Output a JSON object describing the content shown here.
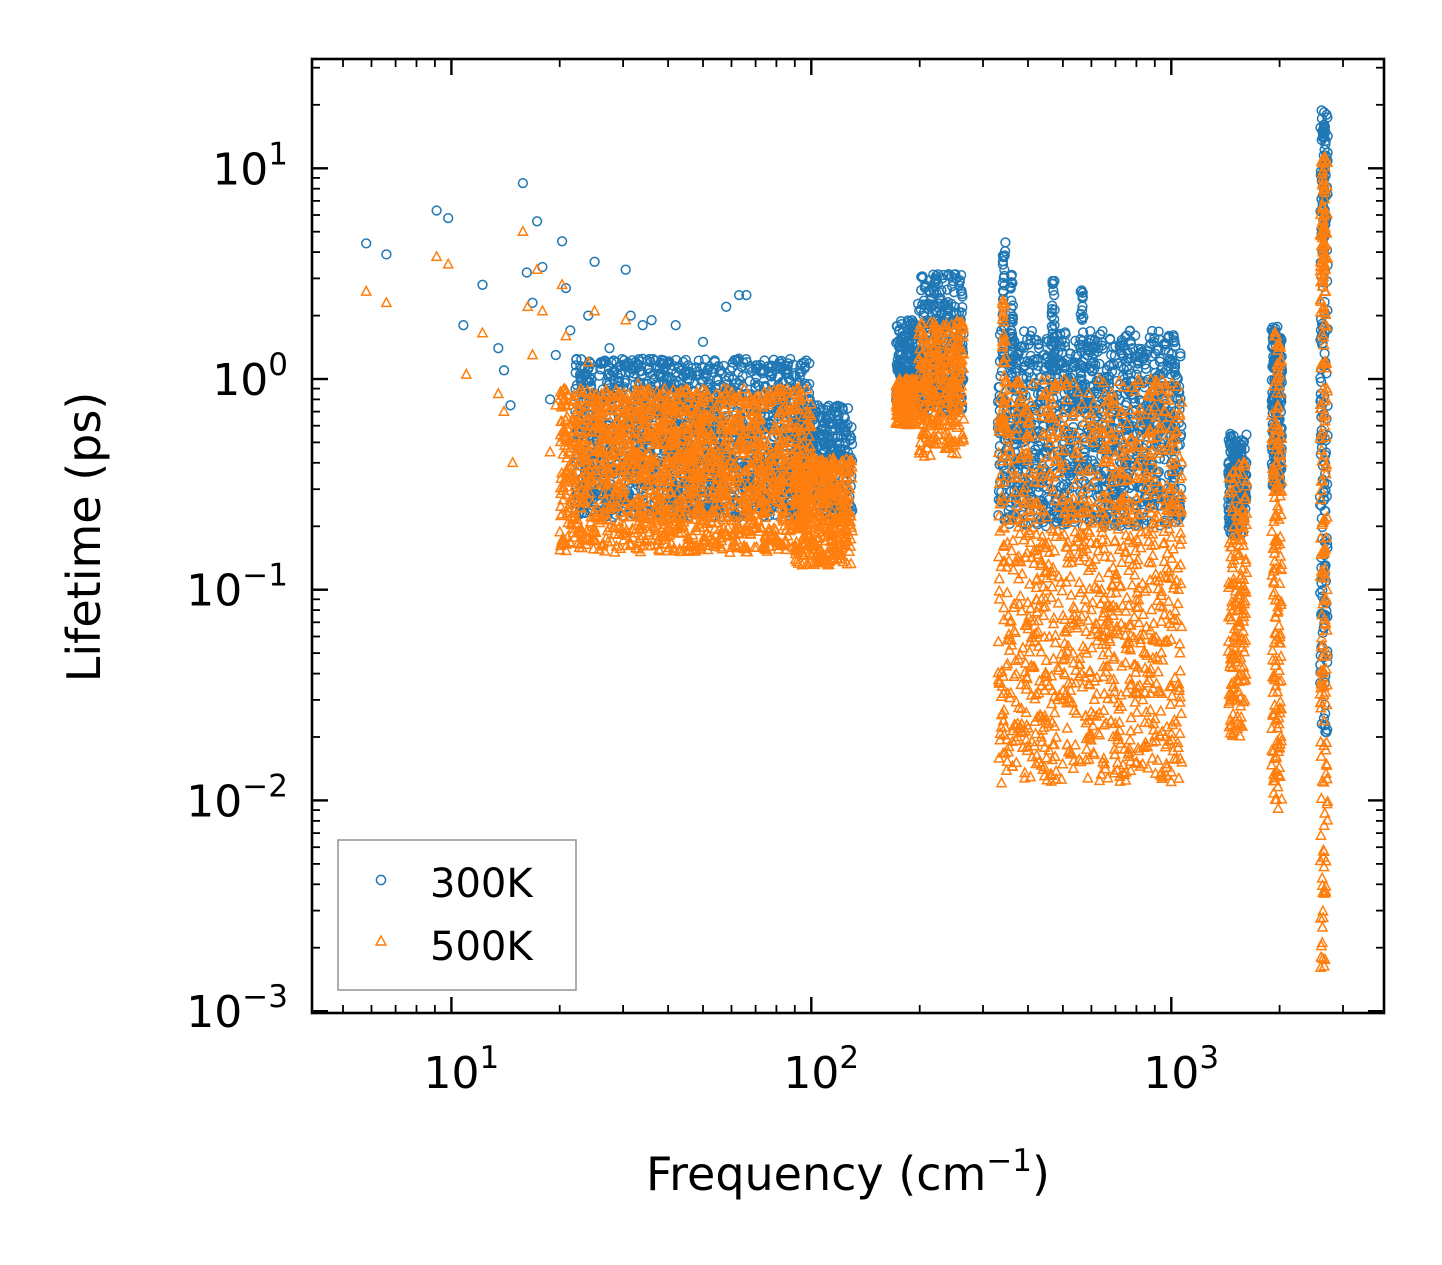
{
  "chart_data": {
    "type": "scatter",
    "title": "",
    "xlabel": "Frequency (cm",
    "xlabel_sup": "−1",
    "xlabel_end": ")",
    "ylabel": "Lifetime (ps)",
    "xscale": "log",
    "yscale": "log",
    "xlim": [
      4.1,
      3900
    ],
    "ylim": [
      0.00098,
      33
    ],
    "x_ticks": [
      {
        "value": 10,
        "base": "10",
        "exp": "1"
      },
      {
        "value": 100,
        "base": "10",
        "exp": "2"
      },
      {
        "value": 1000,
        "base": "10",
        "exp": "3"
      }
    ],
    "y_ticks": [
      {
        "value": 10,
        "base": "10",
        "exp": "1"
      },
      {
        "value": 1,
        "base": "10",
        "exp": "0"
      },
      {
        "value": 0.1,
        "base": "10",
        "exp": "−1"
      },
      {
        "value": 0.01,
        "base": "10",
        "exp": "−2"
      },
      {
        "value": 0.001,
        "base": "10",
        "exp": "−3"
      }
    ],
    "legend_position": "bottom-left",
    "series": [
      {
        "name": "300K",
        "marker": "circle",
        "color": "#1f77b4",
        "isolated_points": [
          [
            5.8,
            4.4
          ],
          [
            6.6,
            3.9
          ],
          [
            9.1,
            6.3
          ],
          [
            9.8,
            5.8
          ],
          [
            10.8,
            1.8
          ],
          [
            12.2,
            2.8
          ],
          [
            13.5,
            1.4
          ],
          [
            14.0,
            1.1
          ],
          [
            14.6,
            0.75
          ],
          [
            15.8,
            8.5
          ],
          [
            16.2,
            3.2
          ],
          [
            16.8,
            2.3
          ],
          [
            17.3,
            5.6
          ],
          [
            17.9,
            3.4
          ],
          [
            18.8,
            0.8
          ],
          [
            19.5,
            1.3
          ],
          [
            20.3,
            4.5
          ],
          [
            20.8,
            2.7
          ],
          [
            21.4,
            1.7
          ],
          [
            22.5,
            0.6
          ],
          [
            24.0,
            2.0
          ],
          [
            25.0,
            3.6
          ],
          [
            26.0,
            1.2
          ],
          [
            27.5,
            1.4
          ],
          [
            29.0,
            0.9
          ],
          [
            30.5,
            3.3
          ],
          [
            31.5,
            2.0
          ],
          [
            34.0,
            1.8
          ],
          [
            36.0,
            1.9
          ],
          [
            42.0,
            1.8
          ],
          [
            50.0,
            1.5
          ],
          [
            58.0,
            2.2
          ],
          [
            63.0,
            2.5
          ],
          [
            66.0,
            2.5
          ]
        ],
        "clusters": [
          {
            "x_range": [
              22,
              100
            ],
            "y_range": [
              0.22,
              1.25
            ]
          },
          {
            "x_range": [
              90,
              130
            ],
            "y_range": [
              0.22,
              0.75
            ]
          },
          {
            "x_range": [
              172,
              195
            ],
            "y_range": [
              0.75,
              1.9
            ]
          },
          {
            "x_range": [
              198,
              265
            ],
            "y_range": [
              0.7,
              3.2
            ]
          },
          {
            "x_range": [
              330,
              1070
            ],
            "y_range": [
              0.2,
              1.7
            ]
          },
          {
            "x_range": [
              1440,
              1620
            ],
            "y_range": [
              0.18,
              0.55
            ]
          },
          {
            "x_range": [
              1900,
              2030
            ],
            "y_range": [
              0.3,
              1.8
            ]
          },
          {
            "x_range": [
              2590,
              2720
            ],
            "y_range": [
              0.02,
              19
            ]
          }
        ],
        "spikes": [
          {
            "x": 343,
            "y_top": 4.5
          },
          {
            "x": 360,
            "y_top": 3.2
          },
          {
            "x": 470,
            "y_top": 3.0
          },
          {
            "x": 565,
            "y_top": 2.8
          },
          {
            "x": 2650,
            "y_top": 19
          }
        ]
      },
      {
        "name": "500K",
        "marker": "triangle",
        "color": "#ff7f0e",
        "isolated_points": [
          [
            5.8,
            2.6
          ],
          [
            6.6,
            2.3
          ],
          [
            9.1,
            3.8
          ],
          [
            9.8,
            3.5
          ],
          [
            11.0,
            1.05
          ],
          [
            12.2,
            1.65
          ],
          [
            13.5,
            0.85
          ],
          [
            14.0,
            0.7
          ],
          [
            14.8,
            0.4
          ],
          [
            15.8,
            5.0
          ],
          [
            16.3,
            2.2
          ],
          [
            16.8,
            1.3
          ],
          [
            17.3,
            3.3
          ],
          [
            17.9,
            2.1
          ],
          [
            18.8,
            0.45
          ],
          [
            19.5,
            0.75
          ],
          [
            20.3,
            2.8
          ],
          [
            20.8,
            1.6
          ],
          [
            21.4,
            0.33
          ],
          [
            24.0,
            1.2
          ],
          [
            25.0,
            2.1
          ],
          [
            27.0,
            0.85
          ],
          [
            30.5,
            1.9
          ],
          [
            33.0,
            0.95
          ]
        ],
        "clusters": [
          {
            "x_range": [
              20,
              100
            ],
            "y_range": [
              0.15,
              0.9
            ]
          },
          {
            "x_range": [
              90,
              130
            ],
            "y_range": [
              0.13,
              0.42
            ]
          },
          {
            "x_range": [
              172,
              195
            ],
            "y_range": [
              0.6,
              1.0
            ]
          },
          {
            "x_range": [
              198,
              265
            ],
            "y_range": [
              0.42,
              1.9
            ]
          },
          {
            "x_range": [
              330,
              1070
            ],
            "y_range": [
              0.012,
              1.0
            ]
          },
          {
            "x_range": [
              1440,
              1620
            ],
            "y_range": [
              0.02,
              0.4
            ]
          },
          {
            "x_range": [
              1900,
              2030
            ],
            "y_range": [
              0.009,
              1.7
            ]
          },
          {
            "x_range": [
              2590,
              2720
            ],
            "y_range": [
              0.0016,
              12
            ]
          }
        ],
        "spikes": [
          {
            "x": 343,
            "y_top": 2.4
          },
          {
            "x": 2650,
            "y_top": 12
          }
        ]
      }
    ]
  }
}
